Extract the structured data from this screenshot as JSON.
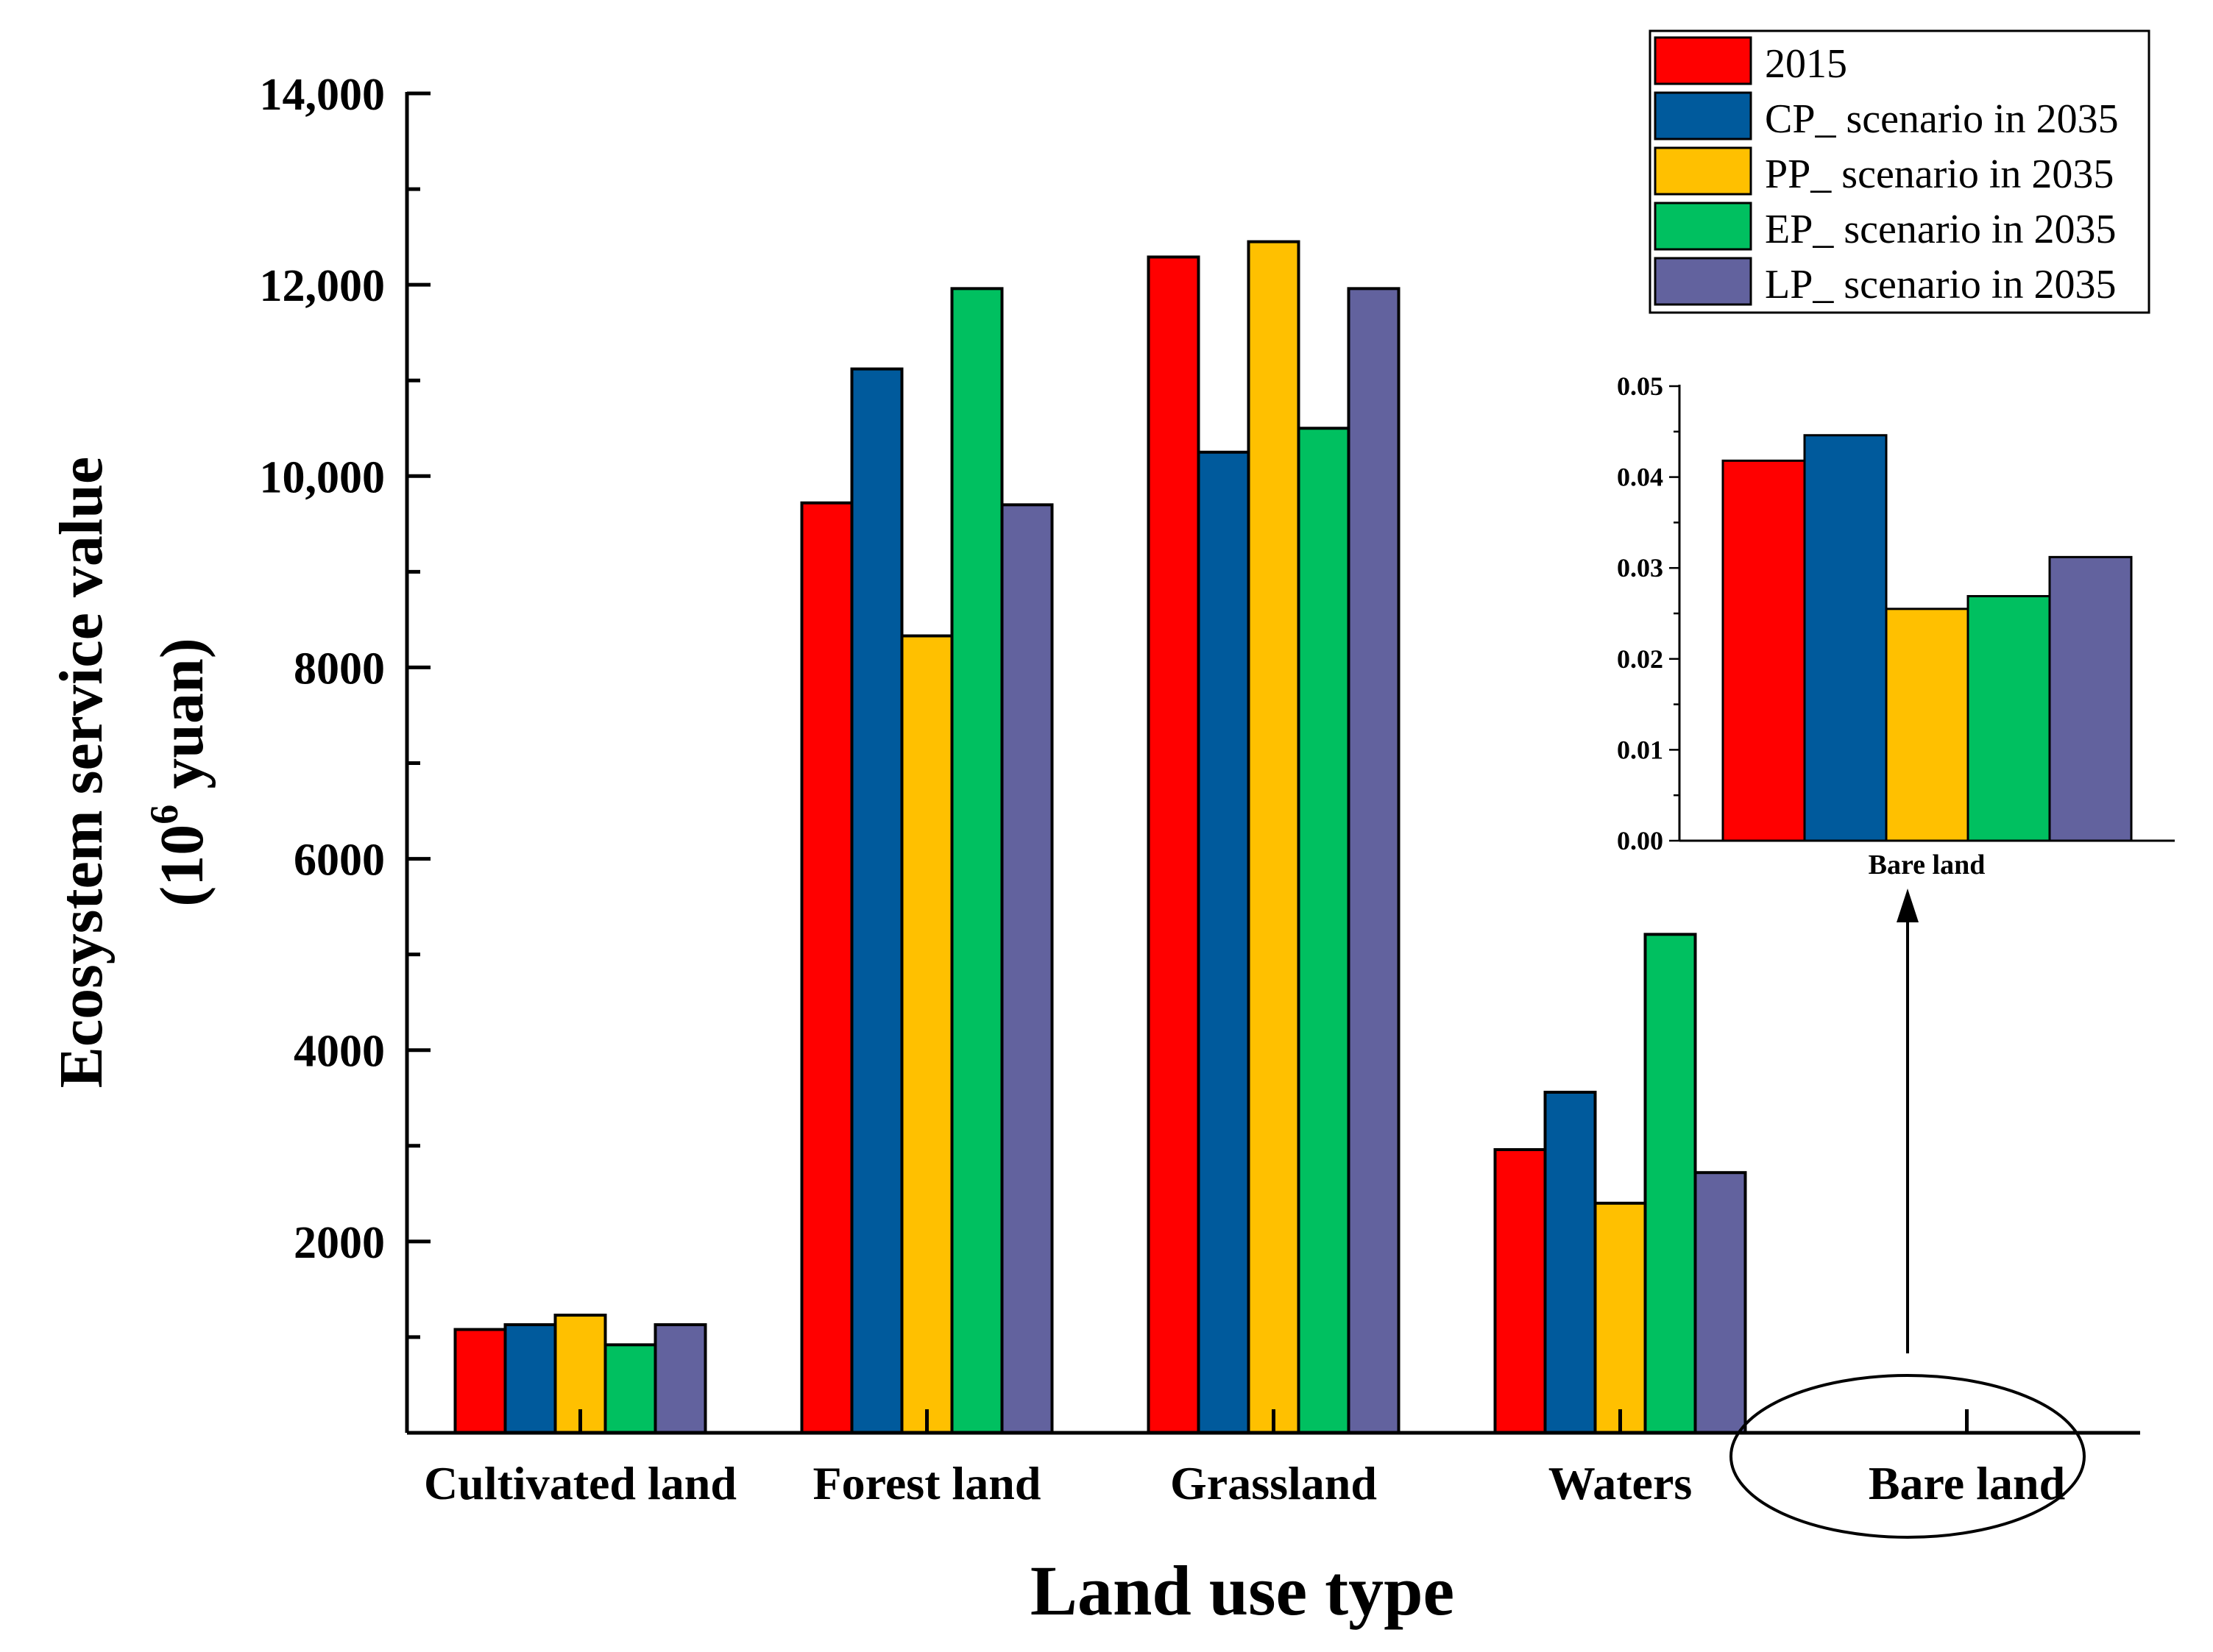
{
  "chart_data": [
    {
      "type": "bar",
      "title": "",
      "xlabel": "Land use type",
      "ylabel": "Ecosystem service value",
      "ylabel_unit": "(10",
      "ylabel_unit_exp": "6",
      "ylabel_unit_suffix": " yuan)",
      "categories": [
        "Cultivated land",
        "Forest land",
        "Grassland",
        "Waters",
        "Bare land"
      ],
      "series": [
        {
          "name": "2015",
          "color": "#ff0000",
          "values": [
            1080,
            9720,
            12290,
            2960,
            0.0418
          ]
        },
        {
          "name": "CP_ scenario in 2035",
          "color": "#005a9c",
          "values": [
            1130,
            11120,
            10250,
            3560,
            0.0446
          ]
        },
        {
          "name": "PP_ scenario in 2035",
          "color": "#ffc000",
          "values": [
            1230,
            8330,
            12450,
            2400,
            0.0255
          ]
        },
        {
          "name": "EP_ scenario in 2035",
          "color": "#00c060",
          "values": [
            920,
            11960,
            10500,
            5210,
            0.0269
          ]
        },
        {
          "name": "LP_ scenario in 2035",
          "color": "#62629e",
          "values": [
            1130,
            9700,
            11960,
            2720,
            0.0312
          ]
        }
      ],
      "ylim": [
        0,
        14000
      ],
      "yticks": [
        2000,
        4000,
        6000,
        8000,
        10000,
        12000,
        14000
      ],
      "ytick_labels": [
        "2000",
        "4000",
        "6000",
        "8000",
        "10,000",
        "12,000",
        "14,000"
      ],
      "legend": "top-right",
      "highlighted_category": "Bare land"
    },
    {
      "type": "bar",
      "title": "",
      "subplot": "inset",
      "categories": [
        "Bare land"
      ],
      "series": [
        {
          "name": "2015",
          "color": "#ff0000",
          "values": [
            0.0418
          ]
        },
        {
          "name": "CP_ scenario in 2035",
          "color": "#005a9c",
          "values": [
            0.0446
          ]
        },
        {
          "name": "PP_ scenario in 2035",
          "color": "#ffc000",
          "values": [
            0.0255
          ]
        },
        {
          "name": "EP_ scenario in 2035",
          "color": "#00c060",
          "values": [
            0.0269
          ]
        },
        {
          "name": "LP_ scenario in 2035",
          "color": "#62629e",
          "values": [
            0.0312
          ]
        }
      ],
      "ylim": [
        0,
        0.05
      ],
      "yticks": [
        0.0,
        0.01,
        0.02,
        0.03,
        0.04,
        0.05
      ],
      "ytick_labels": [
        "0.00",
        "0.01",
        "0.02",
        "0.03",
        "0.04",
        "0.05"
      ],
      "xlabel": "Bare land"
    }
  ]
}
